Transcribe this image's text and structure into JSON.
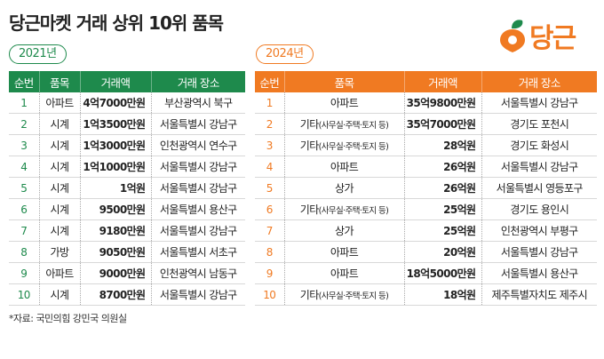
{
  "title": "당근마켓 거래 상위 10위 품목",
  "logo_text": "당근",
  "colors": {
    "green": "#1e8a4c",
    "orange": "#f07a22"
  },
  "headers": [
    "순번",
    "품목",
    "거래액",
    "거래 장소"
  ],
  "t2021": {
    "year": "2021년",
    "rows": [
      [
        "1",
        "아파트",
        "4억7000만원",
        "부산광역시 북구"
      ],
      [
        "2",
        "시계",
        "1억3500만원",
        "서울특별시 강남구"
      ],
      [
        "3",
        "시계",
        "1억3000만원",
        "인천광역시 연수구"
      ],
      [
        "4",
        "시계",
        "1억1000만원",
        "서울특별시 강남구"
      ],
      [
        "5",
        "시계",
        "1억원",
        "서울특별시 강남구"
      ],
      [
        "6",
        "시계",
        "9500만원",
        "서울특별시 용산구"
      ],
      [
        "7",
        "시계",
        "9180만원",
        "서울특별시 강남구"
      ],
      [
        "8",
        "가방",
        "9050만원",
        "서울특별시 서초구"
      ],
      [
        "9",
        "아파트",
        "9000만원",
        "인천광역시 남동구"
      ],
      [
        "10",
        "시계",
        "8700만원",
        "서울특별시 강남구"
      ]
    ]
  },
  "t2024": {
    "year": "2024년",
    "rows": [
      [
        "1",
        "아파트",
        "35억9800만원",
        "서울특별시 강남구"
      ],
      [
        "2",
        "기타(사무실·주택·토지 등)",
        "35억7000만원",
        "경기도 포천시"
      ],
      [
        "3",
        "기타(사무실·주택·토지 등)",
        "28억원",
        "경기도 화성시"
      ],
      [
        "4",
        "아파트",
        "26억원",
        "서울특별시 강남구"
      ],
      [
        "5",
        "상가",
        "26억원",
        "서울특별시 영등포구"
      ],
      [
        "6",
        "기타(사무실·주택·토지 등)",
        "25억원",
        "경기도 용인시"
      ],
      [
        "7",
        "상가",
        "25억원",
        "인천광역시 부평구"
      ],
      [
        "8",
        "아파트",
        "20억원",
        "서울특별시 강남구"
      ],
      [
        "9",
        "아파트",
        "18억5000만원",
        "서울특별시 용산구"
      ],
      [
        "10",
        "기타(사무실·주택·토지 등)",
        "18억원",
        "제주특별자치도 제주시"
      ]
    ]
  },
  "source": "*자료: 국민의힘 강민국 의원실"
}
